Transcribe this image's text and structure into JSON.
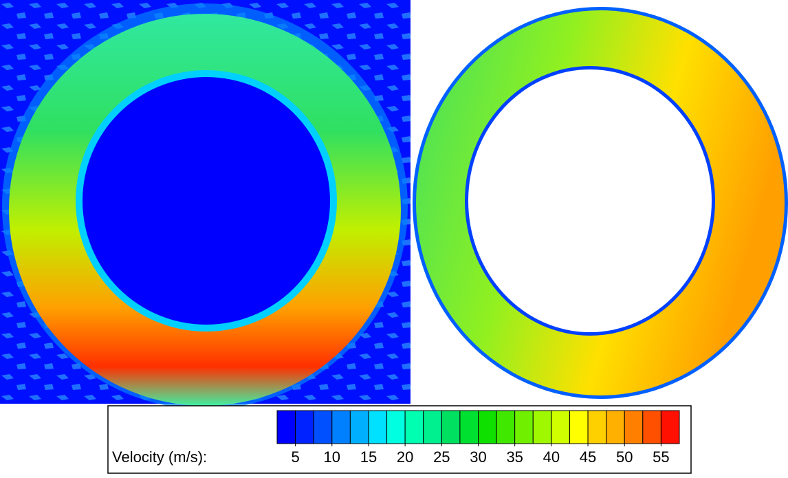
{
  "colorbar": {
    "label": "Velocity (m/s):",
    "lim": [
      2.5,
      57.5
    ],
    "ticks": [
      5,
      10,
      15,
      20,
      25,
      30,
      35,
      40,
      45,
      50,
      55
    ],
    "colors": [
      "#0000ff",
      "#0022ff",
      "#0050ff",
      "#0080ff",
      "#00b0ff",
      "#00e0ff",
      "#00ffe0",
      "#00ffb0",
      "#00f090",
      "#00e060",
      "#00e030",
      "#10e000",
      "#40e800",
      "#70f000",
      "#a0f800",
      "#d0ff00",
      "#ffff00",
      "#ffd000",
      "#ffb000",
      "#ff8000",
      "#ff5000",
      "#ff1000"
    ]
  }
}
